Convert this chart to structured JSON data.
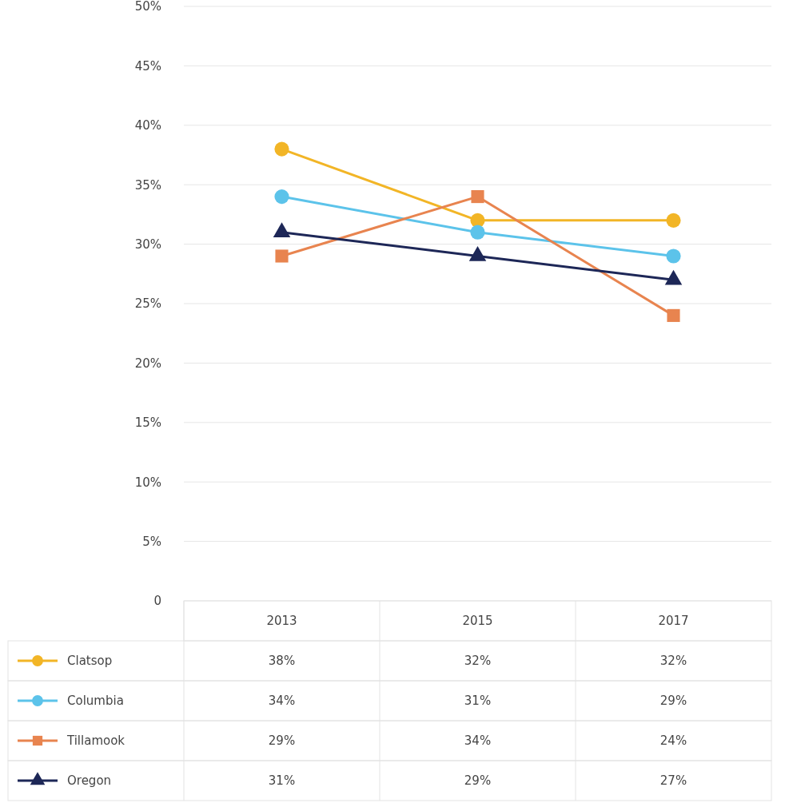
{
  "chart_data": {
    "type": "line",
    "categories": [
      "2013",
      "2015",
      "2017"
    ],
    "series": [
      {
        "name": "Clatsop",
        "color": "#f2b526",
        "marker": "circle",
        "values": [
          38,
          32,
          32
        ],
        "value_labels": [
          "38%",
          "32%",
          "32%"
        ]
      },
      {
        "name": "Columbia",
        "color": "#5cc3ea",
        "marker": "circle",
        "values": [
          34,
          31,
          29
        ],
        "value_labels": [
          "34%",
          "31%",
          "29%"
        ]
      },
      {
        "name": "Tillamook",
        "color": "#e8844f",
        "marker": "square",
        "values": [
          29,
          34,
          24
        ],
        "value_labels": [
          "29%",
          "34%",
          "24%"
        ]
      },
      {
        "name": "Oregon",
        "color": "#1d2757",
        "marker": "triangle",
        "values": [
          31,
          29,
          27
        ],
        "value_labels": [
          "31%",
          "29%",
          "27%"
        ]
      }
    ],
    "ylim": [
      0,
      50
    ],
    "yticks": [
      0,
      {
        "value": 5,
        "label": "5%"
      },
      {
        "value": 10,
        "label": "10%"
      },
      {
        "value": 15,
        "label": "15%"
      },
      {
        "value": 20,
        "label": "20%"
      },
      {
        "value": 25,
        "label": "25%"
      },
      {
        "value": 30,
        "label": "30%"
      },
      {
        "value": 35,
        "label": "35%"
      },
      {
        "value": 40,
        "label": "40%"
      },
      {
        "value": 45,
        "label": "45%"
      },
      {
        "value": 50,
        "label": "50%"
      }
    ],
    "grid": "y",
    "legend": "bottom",
    "line_style": "solid"
  }
}
